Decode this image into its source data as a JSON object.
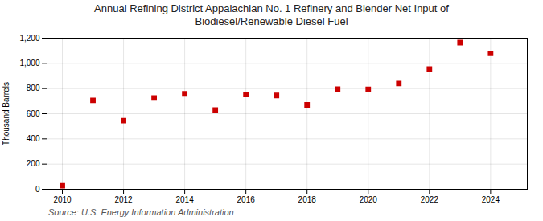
{
  "chart_data": {
    "type": "scatter",
    "title": "Annual Refining District Appalachian No. 1 Refinery and Blender Net Input of\nBiodiesel/Renewable Diesel Fuel",
    "ylabel": "Thousand Barrels",
    "source": "Source: U.S. Energy Information Administration",
    "x": [
      2010,
      2011,
      2012,
      2013,
      2014,
      2015,
      2016,
      2017,
      2018,
      2019,
      2020,
      2021,
      2022,
      2023,
      2024
    ],
    "values": [
      28,
      706,
      545,
      725,
      758,
      630,
      752,
      745,
      670,
      795,
      793,
      840,
      955,
      1165,
      1080
    ],
    "color": "#cc0000",
    "marker": "square",
    "xlim": [
      2009.5,
      2025.2
    ],
    "xticks": [
      2010,
      2012,
      2014,
      2016,
      2018,
      2020,
      2022,
      2024
    ],
    "ylim": [
      0,
      1200
    ],
    "yticks": [
      0,
      200,
      400,
      600,
      800,
      {
        "value": 1000,
        "label": "1,000"
      },
      {
        "value": 1200,
        "label": "1,200"
      }
    ],
    "grid": true
  }
}
